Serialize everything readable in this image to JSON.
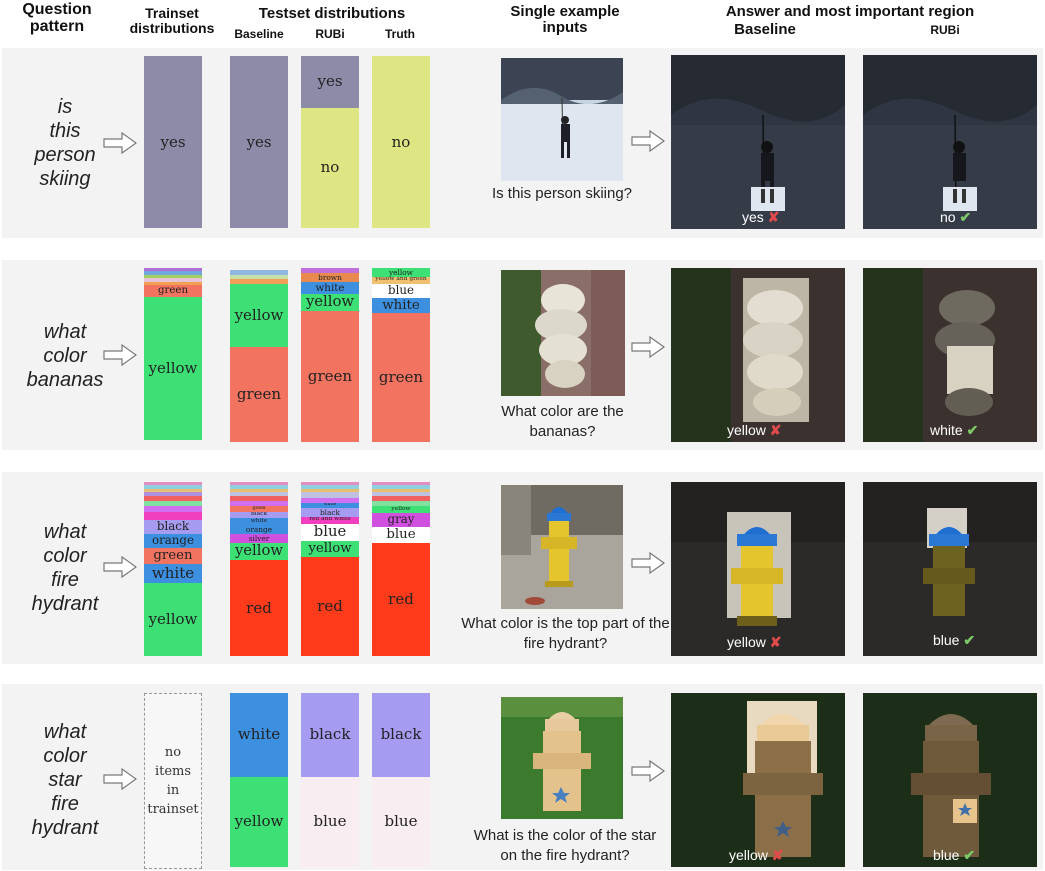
{
  "headers": {
    "question_pattern": "Question pattern",
    "trainset": "Trainset distributions",
    "testset": "Testset distributions",
    "baseline": "Baseline",
    "rubi": "RUBi",
    "truth": "Truth",
    "single": "Single example inputs",
    "answer": "Answer and most important region",
    "answer_baseline": "Baseline",
    "answer_rubi": "RUBi"
  },
  "rows": [
    {
      "pattern": [
        "is",
        "this",
        "person",
        "skiing"
      ],
      "question": "Is this person skiing?",
      "baseline_answer": "yes",
      "baseline_mark": "✘",
      "rubi_answer": "no",
      "rubi_mark": "✔",
      "dists": {
        "train": [
          {
            "label": "yes",
            "value": 100,
            "color": "#8e8ba8"
          }
        ],
        "baseline": [
          {
            "label": "yes",
            "value": 100,
            "color": "#8e8ba8"
          }
        ],
        "rubi": [
          {
            "label": "yes",
            "value": 30,
            "color": "#8e8ba8"
          },
          {
            "label": "no",
            "value": 70,
            "color": "#dde682"
          }
        ],
        "truth": [
          {
            "label": "no",
            "value": 100,
            "color": "#dde682"
          }
        ]
      }
    },
    {
      "pattern": [
        "what",
        "color",
        "bananas"
      ],
      "question": "What color are the bananas?",
      "baseline_answer": "yellow",
      "baseline_mark": "✘",
      "rubi_answer": "white",
      "rubi_mark": "✔",
      "dists": {
        "train": [
          {
            "label": "",
            "value": 2,
            "color": "#b070d8"
          },
          {
            "label": "",
            "value": 2,
            "color": "#6fa8dc"
          },
          {
            "label": "",
            "value": 2,
            "color": "#a0d060"
          },
          {
            "label": "",
            "value": 2,
            "color": "#e6c3d8"
          },
          {
            "label": "",
            "value": 2,
            "color": "#f0a050"
          },
          {
            "label": "green",
            "value": 7,
            "color": "#f27360"
          },
          {
            "label": "yellow",
            "value": 83,
            "color": "#3de074"
          }
        ],
        "baseline": [
          {
            "label": "",
            "value": 3,
            "color": "#8fb7e0"
          },
          {
            "label": "",
            "value": 2,
            "color": "#c4e0a8"
          },
          {
            "label": "",
            "value": 3,
            "color": "#f2a058"
          },
          {
            "label": "yellow",
            "value": 37,
            "color": "#3de074"
          },
          {
            "label": "green",
            "value": 55,
            "color": "#f27360"
          }
        ],
        "rubi": [
          {
            "label": "",
            "value": 3,
            "color": "#c070d8"
          },
          {
            "label": "brown",
            "value": 5,
            "color": "#e88a50"
          },
          {
            "label": "white",
            "value": 7,
            "color": "#3d8fe0"
          },
          {
            "label": "yellow",
            "value": 10,
            "color": "#3de074"
          },
          {
            "label": "green",
            "value": 75,
            "color": "#f27360"
          }
        ],
        "truth": [
          {
            "label": "yellow",
            "value": 5,
            "color": "#3de074"
          },
          {
            "label": "yellow and green",
            "value": 4,
            "color": "#f0c070"
          },
          {
            "label": "blue",
            "value": 8,
            "color": "#ffffff"
          },
          {
            "label": "white",
            "value": 9,
            "color": "#3d8fe0"
          },
          {
            "label": "green",
            "value": 74,
            "color": "#f27360"
          }
        ]
      }
    },
    {
      "pattern": [
        "what",
        "color",
        "fire",
        "hydrant"
      ],
      "question": "What color is the top part of the fire hydrant?",
      "baseline_answer": "yellow",
      "baseline_mark": "✘",
      "rubi_answer": "blue",
      "rubi_mark": "✔",
      "dists": {
        "train": [
          {
            "label": "",
            "value": 2,
            "color": "#e08fc0"
          },
          {
            "label": "",
            "value": 2,
            "color": "#8fd0e0"
          },
          {
            "label": "",
            "value": 2,
            "color": "#e6c070"
          },
          {
            "label": "",
            "value": 2,
            "color": "#b090e0"
          },
          {
            "label": "",
            "value": 3,
            "color": "#f06060"
          },
          {
            "label": "",
            "value": 3,
            "color": "#80e0a0"
          },
          {
            "label": "",
            "value": 3,
            "color": "#d070f0"
          },
          {
            "label": "",
            "value": 5,
            "color": "#f040c0"
          },
          {
            "label": "black",
            "value": 8,
            "color": "#a59bf0"
          },
          {
            "label": "orange",
            "value": 8,
            "color": "#3d8fe0"
          },
          {
            "label": "green",
            "value": 9,
            "color": "#f27360"
          },
          {
            "label": "white",
            "value": 11,
            "color": "#3d8fe0"
          },
          {
            "label": "yellow",
            "value": 42,
            "color": "#3de074"
          }
        ],
        "baseline": [
          {
            "label": "",
            "value": 2,
            "color": "#e08fc0"
          },
          {
            "label": "",
            "value": 2,
            "color": "#8fd0e0"
          },
          {
            "label": "",
            "value": 2,
            "color": "#e6c070"
          },
          {
            "label": "",
            "value": 2,
            "color": "#c0c0e0"
          },
          {
            "label": "",
            "value": 3,
            "color": "#f06060"
          },
          {
            "label": "",
            "value": 3,
            "color": "#d070f0"
          },
          {
            "label": "green",
            "value": 3,
            "color": "#f27360"
          },
          {
            "label": "black",
            "value": 4,
            "color": "#a59bf0"
          },
          {
            "label": "white",
            "value": 4,
            "color": "#3d8fe0"
          },
          {
            "label": "orange",
            "value": 5,
            "color": "#3d8fe0"
          },
          {
            "label": "silver",
            "value": 5,
            "color": "#d050e0"
          },
          {
            "label": "yellow",
            "value": 10,
            "color": "#3de074"
          },
          {
            "label": "red",
            "value": 55,
            "color": "#ff3b1c"
          }
        ],
        "rubi": [
          {
            "label": "",
            "value": 2,
            "color": "#e08fc0"
          },
          {
            "label": "",
            "value": 2,
            "color": "#8fd0e0"
          },
          {
            "label": "",
            "value": 2,
            "color": "#e6c070"
          },
          {
            "label": "",
            "value": 3,
            "color": "#c0c0e0"
          },
          {
            "label": "",
            "value": 3,
            "color": "#d070f0"
          },
          {
            "label": "white",
            "value": 3,
            "color": "#3d8fe0"
          },
          {
            "label": "black",
            "value": 5,
            "color": "#a59bf0"
          },
          {
            "label": "red and white",
            "value": 4,
            "color": "#f040c0"
          },
          {
            "label": "blue",
            "value": 10,
            "color": "#ffffff"
          },
          {
            "label": "yellow",
            "value": 9,
            "color": "#3de074"
          },
          {
            "label": "red",
            "value": 57,
            "color": "#ff3b1c"
          }
        ],
        "truth": [
          {
            "label": "",
            "value": 2,
            "color": "#e08fc0"
          },
          {
            "label": "",
            "value": 2,
            "color": "#8fd0e0"
          },
          {
            "label": "",
            "value": 2,
            "color": "#e6c070"
          },
          {
            "label": "",
            "value": 2,
            "color": "#c0c0e0"
          },
          {
            "label": "",
            "value": 3,
            "color": "#f06060"
          },
          {
            "label": "",
            "value": 3,
            "color": "#80e0a0"
          },
          {
            "label": "yellow",
            "value": 4,
            "color": "#3de074"
          },
          {
            "label": "gray",
            "value": 8,
            "color": "#d050e0"
          },
          {
            "label": "blue",
            "value": 9,
            "color": "#ffffff"
          },
          {
            "label": "red",
            "value": 65,
            "color": "#ff3b1c"
          }
        ]
      }
    },
    {
      "pattern": [
        "what",
        "color",
        "star",
        "fire",
        "hydrant"
      ],
      "question": "What is the color of the star on the fire hydrant?",
      "baseline_answer": "yellow",
      "baseline_mark": "✘",
      "rubi_answer": "blue",
      "rubi_mark": "✔",
      "train_empty": [
        "no",
        "items",
        "in",
        "trainset"
      ],
      "dists": {
        "baseline": [
          {
            "label": "white",
            "value": 48,
            "color": "#3d8fe0"
          },
          {
            "label": "yellow",
            "value": 52,
            "color": "#3de074"
          }
        ],
        "rubi": [
          {
            "label": "black",
            "value": 48,
            "color": "#a59bf0"
          },
          {
            "label": "blue",
            "value": 52,
            "color": "#f8eef2"
          }
        ],
        "truth": [
          {
            "label": "black",
            "value": 48,
            "color": "#a59bf0"
          },
          {
            "label": "blue",
            "value": 52,
            "color": "#f8eef2"
          }
        ]
      }
    }
  ]
}
